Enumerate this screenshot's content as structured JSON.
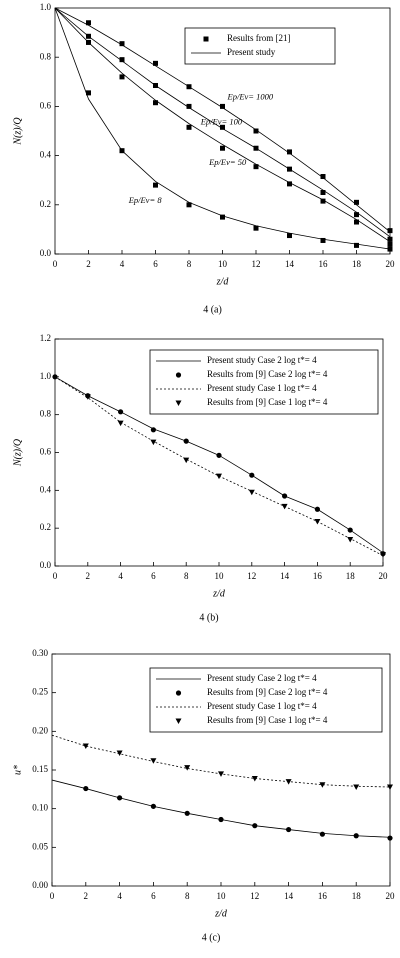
{
  "chart_data": [
    {
      "type": "line",
      "caption": "4 (a)",
      "xlabel": "z/d",
      "ylabel": "N(z)/Q",
      "color": "#000000",
      "x": [
        0,
        2,
        4,
        6,
        8,
        10,
        12,
        14,
        16,
        18,
        20
      ],
      "xlim": [
        0,
        20
      ],
      "xticks": [
        0,
        2,
        4,
        6,
        8,
        10,
        12,
        14,
        16,
        18,
        20
      ],
      "ylim": [
        0,
        1
      ],
      "yticks": [
        {
          "value": 0,
          "label": "0.0"
        },
        0.2,
        0.4,
        0.6,
        0.8,
        {
          "value": 1,
          "label": "1.0"
        }
      ],
      "series": [
        {
          "name": "Results from [21]",
          "marker": "square",
          "values": [
            null,
            0.94,
            0.855,
            0.775,
            0.68,
            0.6,
            0.5,
            0.415,
            0.315,
            0.21,
            0.095
          ]
        },
        {
          "name": "Present study",
          "dash": "solid",
          "values": [
            1.0,
            0.93,
            0.85,
            0.765,
            0.68,
            0.595,
            0.505,
            0.41,
            0.31,
            0.2,
            0.09
          ]
        },
        {
          "marker": "square",
          "values": [
            null,
            0.885,
            0.79,
            0.685,
            0.6,
            0.515,
            0.43,
            0.345,
            0.25,
            0.16,
            0.06
          ]
        },
        {
          "dash": "solid",
          "values": [
            1.0,
            0.885,
            0.785,
            0.685,
            0.595,
            0.51,
            0.43,
            0.345,
            0.26,
            0.17,
            0.07
          ]
        },
        {
          "marker": "square",
          "values": [
            null,
            0.86,
            0.72,
            0.615,
            0.515,
            0.43,
            0.355,
            0.285,
            0.215,
            0.13,
            0.04
          ]
        },
        {
          "dash": "solid",
          "values": [
            1.0,
            0.86,
            0.735,
            0.625,
            0.53,
            0.445,
            0.365,
            0.29,
            0.22,
            0.14,
            0.05
          ]
        },
        {
          "marker": "square",
          "values": [
            null,
            0.655,
            0.42,
            0.28,
            0.2,
            0.15,
            0.105,
            0.075,
            0.055,
            0.035,
            0.02
          ]
        },
        {
          "dash": "solid",
          "values": [
            1.0,
            0.63,
            0.42,
            0.295,
            0.21,
            0.155,
            0.115,
            0.085,
            0.06,
            0.04,
            0.02
          ]
        }
      ],
      "annotations": [
        "Ep/Ev= 1000",
        "Ep/Ev= 100",
        "Ep/Ev= 50",
        "Ep/Ev= 8"
      ]
    },
    {
      "type": "line",
      "caption": "4 (b)",
      "xlabel": "z/d",
      "ylabel": "N(z)/Q",
      "color": "#000000",
      "x": [
        0,
        2,
        4,
        6,
        8,
        10,
        12,
        14,
        16,
        18,
        20
      ],
      "xlim": [
        0,
        20
      ],
      "xticks": [
        0,
        2,
        4,
        6,
        8,
        10,
        12,
        14,
        16,
        18,
        20
      ],
      "ylim": [
        0,
        1.2
      ],
      "yticks": [
        {
          "value": 0,
          "label": "0.0"
        },
        0.2,
        0.4,
        0.6,
        0.8,
        {
          "value": 1,
          "label": "1.0"
        },
        1.2
      ],
      "series": [
        {
          "name": "Present study Case 2 log t*= 4",
          "dash": "solid",
          "values": [
            1.0,
            0.9,
            0.815,
            0.725,
            0.66,
            0.585,
            0.48,
            0.37,
            0.3,
            0.19,
            0.07
          ]
        },
        {
          "name": "Results from [9] Case 2 log t*= 4",
          "marker": "circle",
          "values": [
            1.0,
            0.9,
            0.815,
            0.72,
            0.66,
            0.585,
            0.48,
            0.37,
            0.3,
            0.19,
            0.065
          ]
        },
        {
          "name": "Present study Case 1 log t*= 4",
          "dash": "dotted",
          "values": [
            1.0,
            0.89,
            0.76,
            0.66,
            0.565,
            0.475,
            0.395,
            0.315,
            0.235,
            0.145,
            0.055
          ]
        },
        {
          "name": "Results from [9] Case 1 log t*= 4",
          "marker": "triangle-down",
          "values": [
            null,
            0.895,
            0.755,
            0.655,
            0.56,
            0.475,
            0.39,
            0.315,
            0.235,
            0.14,
            0.06
          ]
        }
      ]
    },
    {
      "type": "line",
      "caption": "4 (c)",
      "xlabel": "z/d",
      "ylabel": "u*",
      "color": "#000000",
      "x": [
        0,
        2,
        4,
        6,
        8,
        10,
        12,
        14,
        16,
        18,
        20
      ],
      "xlim": [
        0,
        20
      ],
      "xticks": [
        0,
        2,
        4,
        6,
        8,
        10,
        12,
        14,
        16,
        18,
        20
      ],
      "ylim": [
        0,
        0.3
      ],
      "yticks": [
        {
          "value": 0,
          "label": "0.00"
        },
        0.05,
        {
          "value": 0.1,
          "label": "0.10"
        },
        0.15,
        {
          "value": 0.2,
          "label": "0.20"
        },
        0.25,
        {
          "value": 0.3,
          "label": "0.30"
        }
      ],
      "series": [
        {
          "name": "Present study Case 2 log t*= 4",
          "dash": "solid",
          "values": [
            0.137,
            0.126,
            0.114,
            0.103,
            0.094,
            0.086,
            0.078,
            0.073,
            0.068,
            0.065,
            0.063
          ]
        },
        {
          "name": "Results from [9] Case 2 log t*= 4",
          "marker": "circle",
          "values": [
            null,
            0.126,
            0.114,
            0.103,
            0.094,
            0.086,
            0.078,
            0.073,
            0.067,
            0.065,
            0.062
          ]
        },
        {
          "name": "Present study Case 1 log t*= 4",
          "dash": "dotted",
          "values": [
            0.195,
            0.181,
            0.171,
            0.161,
            0.152,
            0.145,
            0.139,
            0.135,
            0.131,
            0.129,
            0.128
          ]
        },
        {
          "name": "Results from [9] Case 1 log t*= 4",
          "marker": "triangle-down",
          "values": [
            null,
            0.181,
            0.172,
            0.162,
            0.153,
            0.145,
            0.139,
            0.135,
            0.131,
            0.128,
            0.128
          ]
        }
      ]
    }
  ]
}
